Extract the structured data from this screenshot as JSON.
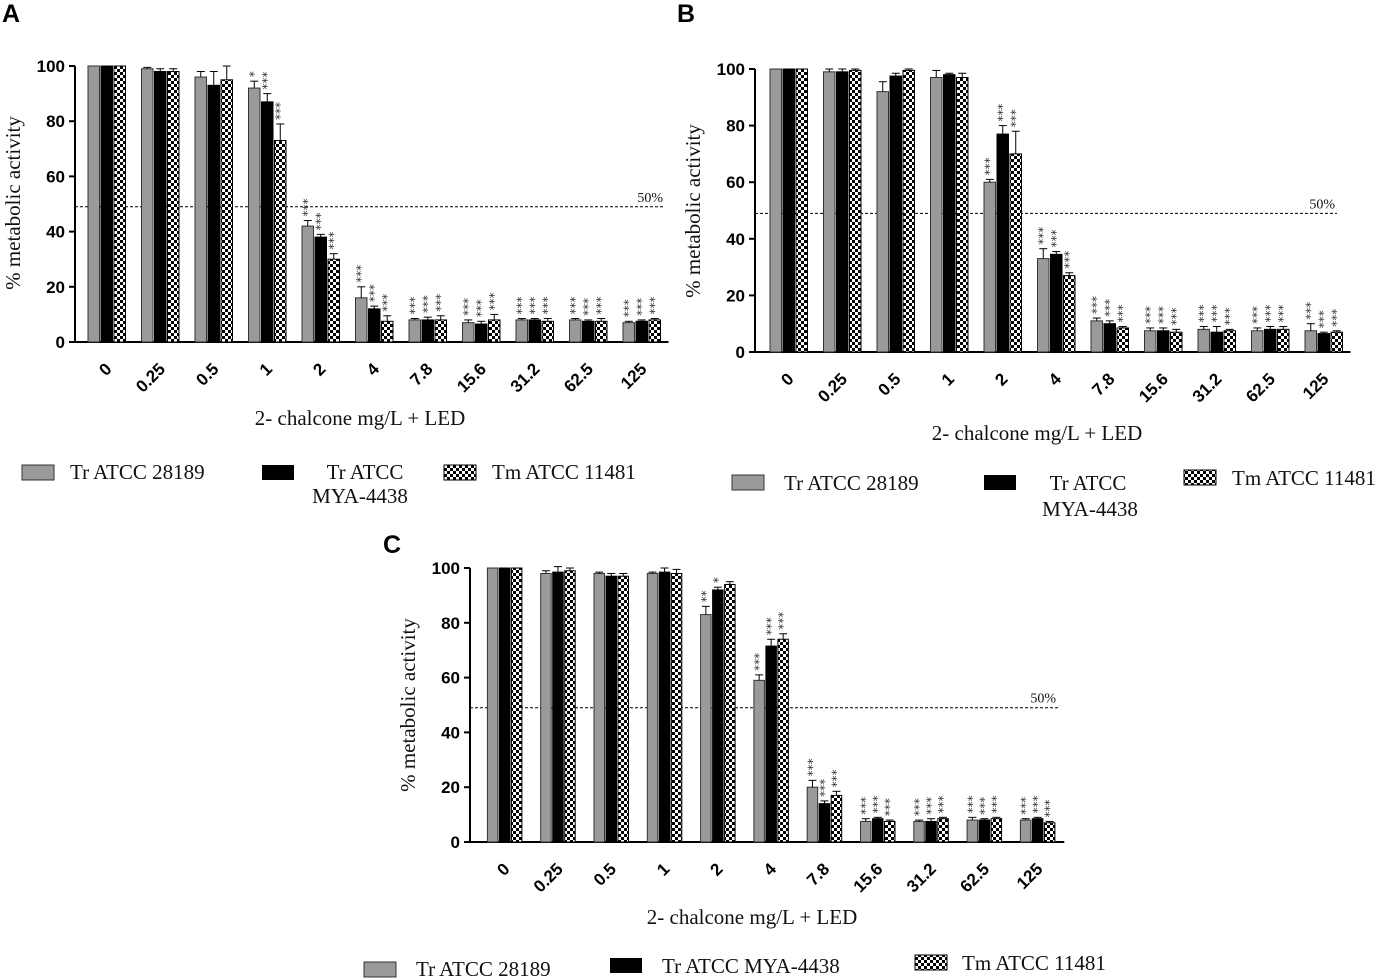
{
  "figure": {
    "legend": [
      {
        "key": "tr28189",
        "label": "Tr ATCC 28189"
      },
      {
        "key": "trMYA",
        "label": "Tr ATCC MYA-4438",
        "label_line1": "Tr ATCC",
        "label_line2": "MYA-4438"
      },
      {
        "key": "tm11481",
        "label": "Tm ATCC 11481"
      }
    ],
    "colors": {
      "tr28189": "#9a9a9a",
      "trMYA": "#000000",
      "tm11481_a": "#000000",
      "tm11481_b": "#ffffff"
    }
  },
  "chart_data": [
    {
      "panel": "A",
      "type": "bar",
      "title": "",
      "xlabel": "2- chalcone mg/L + LED",
      "ylabel": "% metabolic activity",
      "ylim": [
        0,
        100
      ],
      "yticks": [
        0,
        20,
        40,
        60,
        80,
        100
      ],
      "reference_line": {
        "value": 49,
        "label": "50%"
      },
      "categories": [
        "0",
        "0.25",
        "0.5",
        "1",
        "2",
        "4",
        "7.8",
        "15.6",
        "31.2",
        "62.5",
        "125"
      ],
      "series": [
        {
          "name": "Tr ATCC 28189",
          "values": [
            100,
            99,
            96,
            92,
            42,
            16,
            8,
            7,
            8,
            8,
            7
          ],
          "errors": [
            0,
            0.5,
            2,
            2.5,
            2,
            4,
            0.5,
            1,
            0.5,
            0.5,
            0.5
          ],
          "sig": [
            "",
            "",
            "",
            "*",
            "***",
            "***",
            "***",
            "***",
            "***",
            "***",
            "***"
          ]
        },
        {
          "name": "Tr ATCC MYA-4438",
          "values": [
            100,
            98,
            93,
            87,
            38,
            12,
            8,
            6.5,
            8,
            7.5,
            7.5
          ],
          "errors": [
            0,
            1,
            5,
            3,
            1,
            1,
            1,
            1,
            0.5,
            0.5,
            0.5
          ],
          "sig": [
            "",
            "",
            "",
            "***",
            "***",
            "***",
            "***",
            "***",
            "***",
            "***",
            "***"
          ]
        },
        {
          "name": "Tm ATCC 11481",
          "values": [
            100,
            98,
            95,
            73,
            30,
            7.5,
            8,
            8,
            7.5,
            7.5,
            8
          ],
          "errors": [
            0,
            1,
            5,
            6,
            2,
            2,
            1.5,
            2,
            1,
            1,
            0.5
          ],
          "sig": [
            "",
            "",
            "",
            "***",
            "***",
            "***",
            "***",
            "***",
            "***",
            "***",
            "***"
          ]
        }
      ]
    },
    {
      "panel": "B",
      "type": "bar",
      "title": "",
      "xlabel": "2- chalcone mg/L + LED",
      "ylabel": "% metabolic activity",
      "ylim": [
        0,
        100
      ],
      "yticks": [
        0,
        20,
        40,
        60,
        80,
        100
      ],
      "reference_line": {
        "value": 49,
        "label": "50%"
      },
      "categories": [
        "0",
        "0.25",
        "0.5",
        "1",
        "2",
        "4",
        "7.8",
        "15.6",
        "31.2",
        "62.5",
        "125"
      ],
      "series": [
        {
          "name": "Tr ATCC 28189",
          "values": [
            100,
            99,
            92,
            97,
            60,
            33,
            11,
            7.5,
            8,
            7.5,
            7.5
          ],
          "errors": [
            0,
            1,
            3.5,
            2.5,
            1,
            3.5,
            1,
            1,
            1,
            1,
            2.5
          ],
          "sig": [
            "",
            "",
            "",
            "",
            "***",
            "***",
            "***",
            "***",
            "***",
            "***",
            "***"
          ]
        },
        {
          "name": "Tr ATCC MYA-4438",
          "values": [
            100,
            99,
            97.5,
            98,
            77,
            34.5,
            10,
            7.5,
            7,
            8,
            6.5
          ],
          "errors": [
            0,
            1,
            1,
            0.5,
            3,
            1,
            1,
            1,
            2,
            1,
            0.5
          ],
          "sig": [
            "",
            "",
            "",
            "",
            "***",
            "***",
            "***",
            "***",
            "***",
            "***",
            "***"
          ]
        },
        {
          "name": "Tm ATCC 11481",
          "values": [
            100,
            99.5,
            99.5,
            97,
            70,
            27,
            8.5,
            7,
            7.5,
            8,
            7
          ],
          "errors": [
            0,
            0.5,
            0.5,
            1.5,
            8,
            1,
            0.5,
            1,
            0.5,
            1,
            0.5
          ],
          "sig": [
            "",
            "",
            "",
            "",
            "***",
            "***",
            "***",
            "***",
            "***",
            "***",
            "***"
          ]
        }
      ]
    },
    {
      "panel": "C",
      "type": "bar",
      "title": "",
      "xlabel": "2- chalcone mg/L + LED",
      "ylabel": "% metabolic activity",
      "ylim": [
        0,
        100
      ],
      "yticks": [
        0,
        20,
        40,
        60,
        80,
        100
      ],
      "reference_line": {
        "value": 49,
        "label": "50%"
      },
      "categories": [
        "0",
        "0.25",
        "0.5",
        "1",
        "2",
        "4",
        "7.8",
        "15.6",
        "31.2",
        "62.5",
        "125"
      ],
      "series": [
        {
          "name": "Tr ATCC 28189",
          "values": [
            100,
            98,
            98,
            98,
            83,
            59,
            20,
            7.5,
            7.5,
            8,
            8
          ],
          "errors": [
            0,
            1,
            0.5,
            0.5,
            3,
            2,
            2.5,
            1,
            0.5,
            1,
            0.5
          ],
          "sig": [
            "",
            "",
            "",
            "",
            "**",
            "***",
            "***",
            "***",
            "***",
            "***",
            "***"
          ]
        },
        {
          "name": "Tr ATCC MYA-4438",
          "values": [
            100,
            98.5,
            97,
            98.5,
            92,
            71.5,
            14,
            8.5,
            7.5,
            8,
            8.5
          ],
          "errors": [
            0,
            2,
            1,
            1.5,
            1,
            2.5,
            1,
            0.5,
            1,
            0.5,
            0.5
          ],
          "sig": [
            "",
            "",
            "",
            "",
            "*",
            "***",
            "***",
            "***",
            "***",
            "***",
            "***"
          ]
        },
        {
          "name": "Tm ATCC 11481",
          "values": [
            100,
            99,
            97,
            98,
            94,
            74,
            17,
            7.5,
            8.5,
            8.5,
            7
          ],
          "errors": [
            0,
            1,
            1,
            1.5,
            1,
            2,
            1.5,
            0.5,
            0.5,
            0.5,
            0.5
          ],
          "sig": [
            "",
            "",
            "",
            "",
            "",
            "***",
            "***",
            "***",
            "***",
            "***",
            "***"
          ]
        }
      ]
    }
  ]
}
